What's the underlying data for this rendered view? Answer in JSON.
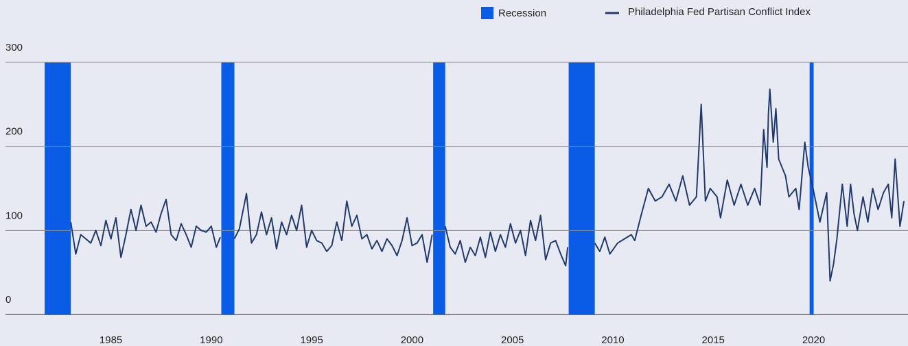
{
  "chart_data": {
    "type": "line",
    "recessions": {
      "name": "Recession",
      "color": "#0a5ce6",
      "periods": [
        [
          1981.7,
          1983.0
        ],
        [
          1990.5,
          1991.15
        ],
        [
          2001.05,
          2001.65
        ],
        [
          2007.8,
          2009.1
        ],
        [
          2019.8,
          2020.0
        ]
      ]
    },
    "x": [
      1983.0,
      1983.25,
      1983.5,
      1983.75,
      1984.0,
      1984.25,
      1984.5,
      1984.75,
      1985.0,
      1985.25,
      1985.5,
      1985.75,
      1986.0,
      1986.25,
      1986.5,
      1986.75,
      1987.0,
      1987.25,
      1987.5,
      1987.75,
      1988.0,
      1988.25,
      1988.5,
      1988.75,
      1989.0,
      1989.25,
      1989.5,
      1989.75,
      1990.0,
      1990.25,
      1990.45,
      1990.8,
      1991.15,
      1991.4,
      1991.75,
      1992.0,
      1992.25,
      1992.5,
      1992.75,
      1993.0,
      1993.25,
      1993.5,
      1993.75,
      1994.0,
      1994.25,
      1994.5,
      1994.75,
      1995.0,
      1995.25,
      1995.5,
      1995.75,
      1996.0,
      1996.25,
      1996.5,
      1996.75,
      1997.0,
      1997.25,
      1997.5,
      1997.75,
      1998.0,
      1998.25,
      1998.5,
      1998.75,
      1999.0,
      1999.25,
      1999.5,
      1999.75,
      2000.0,
      2000.25,
      2000.5,
      2000.75,
      2001.0,
      2001.3,
      2001.65,
      2001.9,
      2002.15,
      2002.4,
      2002.65,
      2002.9,
      2003.15,
      2003.4,
      2003.65,
      2003.9,
      2004.15,
      2004.4,
      2004.65,
      2004.9,
      2005.15,
      2005.4,
      2005.65,
      2005.9,
      2006.15,
      2006.4,
      2006.65,
      2006.9,
      2007.15,
      2007.4,
      2007.65,
      2007.75,
      2008.4,
      2009.1,
      2009.35,
      2009.6,
      2009.85,
      2010.24,
      2010.58,
      2010.92,
      2011.09,
      2011.43,
      2011.77,
      2012.11,
      2012.45,
      2012.8,
      2013.14,
      2013.48,
      2013.82,
      2014.16,
      2014.4,
      2014.61,
      2014.85,
      2015.19,
      2015.36,
      2015.7,
      2016.04,
      2016.38,
      2016.72,
      2017.06,
      2017.34,
      2017.51,
      2017.68,
      2017.75,
      2017.82,
      2017.99,
      2018.12,
      2018.26,
      2018.6,
      2018.77,
      2019.11,
      2019.28,
      2019.56,
      2019.73,
      2019.97,
      2020.31,
      2020.65,
      2020.82,
      2020.99,
      2021.16,
      2021.43,
      2021.67,
      2021.84,
      2022.01,
      2022.18,
      2022.46,
      2022.7,
      2022.94,
      2023.21,
      2023.48,
      2023.72,
      2023.89,
      2024.06,
      2024.3,
      2024.5
    ],
    "series": [
      {
        "name": "Philadelphia Fed Partisan Conflict Index",
        "color": "#213a6b",
        "values": [
          110,
          72,
          95,
          90,
          85,
          100,
          82,
          112,
          90,
          115,
          68,
          95,
          125,
          100,
          130,
          105,
          110,
          98,
          120,
          137,
          95,
          88,
          108,
          95,
          80,
          105,
          100,
          98,
          105,
          80,
          92,
          null,
          90,
          102,
          144,
          85,
          95,
          122,
          95,
          115,
          78,
          110,
          95,
          118,
          100,
          130,
          80,
          100,
          88,
          85,
          75,
          82,
          110,
          88,
          135,
          105,
          118,
          90,
          95,
          78,
          88,
          75,
          90,
          82,
          70,
          88,
          115,
          82,
          85,
          95,
          62,
          95,
          null,
          105,
          80,
          72,
          88,
          62,
          80,
          70,
          92,
          68,
          98,
          75,
          95,
          80,
          108,
          85,
          100,
          70,
          112,
          88,
          118,
          65,
          85,
          88,
          72,
          58,
          80,
          null,
          85,
          75,
          92,
          72,
          85,
          90,
          95,
          88,
          120,
          150,
          135,
          140,
          155,
          135,
          165,
          130,
          140,
          250,
          135,
          150,
          140,
          115,
          160,
          130,
          155,
          130,
          150,
          130,
          220,
          175,
          240,
          268,
          205,
          245,
          185,
          165,
          140,
          150,
          125,
          205,
          175,
          150,
          110,
          145,
          40,
          60,
          90,
          155,
          105,
          155,
          120,
          100,
          140,
          110,
          150,
          125,
          145,
          155,
          115,
          185,
          105,
          135
        ]
      }
    ],
    "xlim": [
      1979.75,
      2024.7
    ],
    "xticks": [
      1985,
      1990,
      1995,
      2000,
      2005,
      2010,
      2015,
      2020
    ],
    "ylim": [
      0,
      300
    ],
    "yticks": [
      0,
      100,
      200,
      300
    ],
    "grid": true
  }
}
